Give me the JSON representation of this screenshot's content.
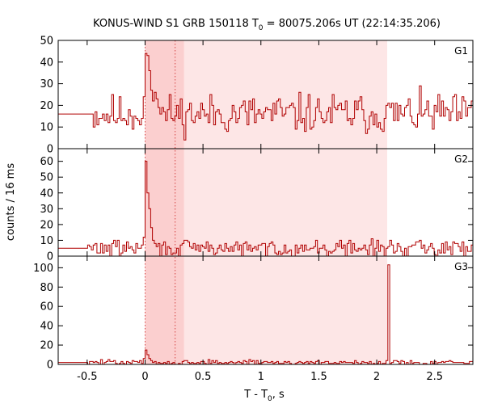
{
  "chart_data": {
    "type": "line",
    "title_main": "KONUS-WIND S1 GRB 150118 T",
    "title_sub": "0",
    "title_rest": " = 80075.206s UT (22:14:35.206)",
    "xlabel_main": "T - T",
    "xlabel_sub": "0",
    "xlabel_rest": ", s",
    "ylabel": "counts / 16 ms",
    "xlim": [
      -0.75,
      2.83
    ],
    "xticks": [
      {
        "v": -0.5,
        "label": "-0.5"
      },
      {
        "v": 0,
        "label": "0"
      },
      {
        "v": 0.5,
        "label": "0.5"
      },
      {
        "v": 1,
        "label": "1"
      },
      {
        "v": 1.5,
        "label": "1.5"
      },
      {
        "v": 2,
        "label": "2"
      },
      {
        "v": 2.5,
        "label": "2.5"
      }
    ],
    "bin_width": 0.016,
    "shading": {
      "color": "#fde6e6",
      "color_dark": "#fbcfcf",
      "light": [
        0,
        2.09
      ],
      "dark": [
        0,
        0.336
      ]
    },
    "markers": [
      0,
      0.26
    ],
    "marker_color": "#cc2222",
    "line_color": "#b00000",
    "panels": [
      {
        "label": "G1",
        "ylim": [
          0,
          50
        ],
        "yticks": [
          {
            "v": 0,
            "label": "0"
          },
          {
            "v": 10,
            "label": "10"
          },
          {
            "v": 20,
            "label": "20"
          },
          {
            "v": 30,
            "label": "30"
          },
          {
            "v": 40,
            "label": "40"
          },
          {
            "v": 50,
            "label": "50"
          }
        ],
        "background": 16,
        "noise": 4.5,
        "seed": 11,
        "pre_flat_end": -0.45,
        "pulse": [
          {
            "t": -0.02,
            "v": 24
          },
          {
            "t": 0.0,
            "v": 44
          },
          {
            "t": 0.016,
            "v": 43
          },
          {
            "t": 0.032,
            "v": 36
          },
          {
            "t": 0.048,
            "v": 27
          },
          {
            "t": 0.064,
            "v": 22
          },
          {
            "t": 0.08,
            "v": 26
          },
          {
            "t": 0.096,
            "v": 23
          },
          {
            "t": 0.112,
            "v": 19
          }
        ]
      },
      {
        "label": "G2",
        "ylim": [
          0,
          68
        ],
        "yticks": [
          {
            "v": 0,
            "label": "0"
          },
          {
            "v": 10,
            "label": "10"
          },
          {
            "v": 20,
            "label": "20"
          },
          {
            "v": 30,
            "label": "30"
          },
          {
            "v": 40,
            "label": "40"
          },
          {
            "v": 50,
            "label": "50"
          },
          {
            "v": 60,
            "label": "60"
          }
        ],
        "background": 5,
        "noise": 2.6,
        "seed": 29,
        "pre_flat_end": -0.5,
        "pulse": [
          {
            "t": -0.016,
            "v": 12
          },
          {
            "t": 0.0,
            "v": 60
          },
          {
            "t": 0.016,
            "v": 40
          },
          {
            "t": 0.032,
            "v": 30
          },
          {
            "t": 0.048,
            "v": 18
          },
          {
            "t": 0.064,
            "v": 10
          },
          {
            "t": 0.08,
            "v": 8
          }
        ]
      },
      {
        "label": "G3",
        "ylim": [
          0,
          112
        ],
        "yticks": [
          {
            "v": 0,
            "label": "0"
          },
          {
            "v": 20,
            "label": "20"
          },
          {
            "v": 40,
            "label": "40"
          },
          {
            "v": 60,
            "label": "60"
          },
          {
            "v": 80,
            "label": "80"
          },
          {
            "v": 100,
            "label": "100"
          }
        ],
        "background": 2,
        "noise": 1.4,
        "seed": 47,
        "pre_flat_end": -0.5,
        "pulse": [
          {
            "t": -0.016,
            "v": 6
          },
          {
            "t": 0.0,
            "v": 15
          },
          {
            "t": 0.016,
            "v": 10
          },
          {
            "t": 0.032,
            "v": 6
          },
          {
            "t": 2.096,
            "v": 103
          }
        ]
      }
    ]
  }
}
